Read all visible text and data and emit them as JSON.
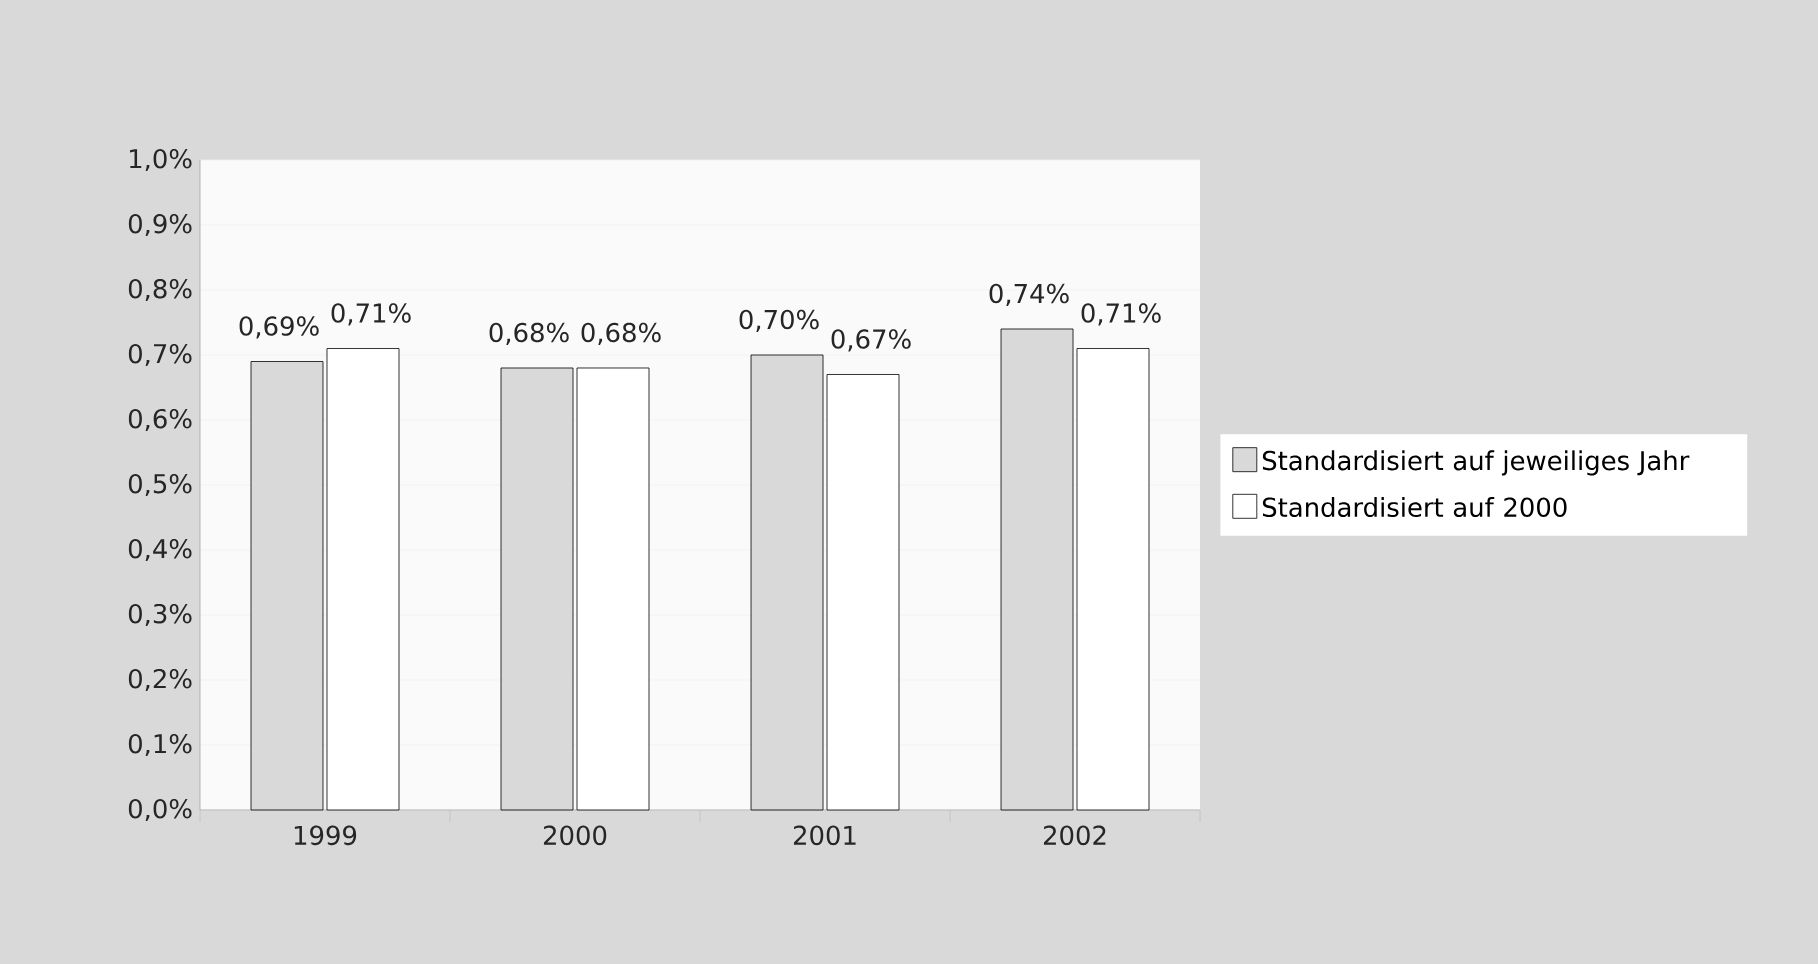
{
  "chart_data": {
    "type": "bar",
    "categories": [
      "1999",
      "2000",
      "2001",
      "2002"
    ],
    "series": [
      {
        "name": "Standardisiert auf jeweiliges Jahr",
        "color": "#d9d9d9",
        "values": [
          0.69,
          0.68,
          0.7,
          0.74
        ],
        "value_labels": [
          "0,69%",
          "0,68%",
          "0,70%",
          "0,74%"
        ]
      },
      {
        "name": "Standardisiert auf 2000",
        "color": "#ffffff",
        "values": [
          0.71,
          0.68,
          0.67,
          0.71
        ],
        "value_labels": [
          "0,71%",
          "0,68%",
          "0,67%",
          "0,71%"
        ]
      }
    ],
    "ylim": [
      0,
      1.0
    ],
    "yticks": [
      {
        "value": 0,
        "label": "0,0%"
      },
      {
        "value": 0.1,
        "label": "0,1%"
      },
      {
        "value": 0.2,
        "label": "0,2%"
      },
      {
        "value": 0.3,
        "label": "0,3%"
      },
      {
        "value": 0.4,
        "label": "0,4%"
      },
      {
        "value": 0.5,
        "label": "0,5%"
      },
      {
        "value": 0.6,
        "label": "0,6%"
      },
      {
        "value": 0.7,
        "label": "0,7%"
      },
      {
        "value": 0.8,
        "label": "0,8%"
      },
      {
        "value": 0.9,
        "label": "0,9%"
      },
      {
        "value": 1.0,
        "label": "1,0%"
      }
    ],
    "grid": "y",
    "legend": "right"
  }
}
